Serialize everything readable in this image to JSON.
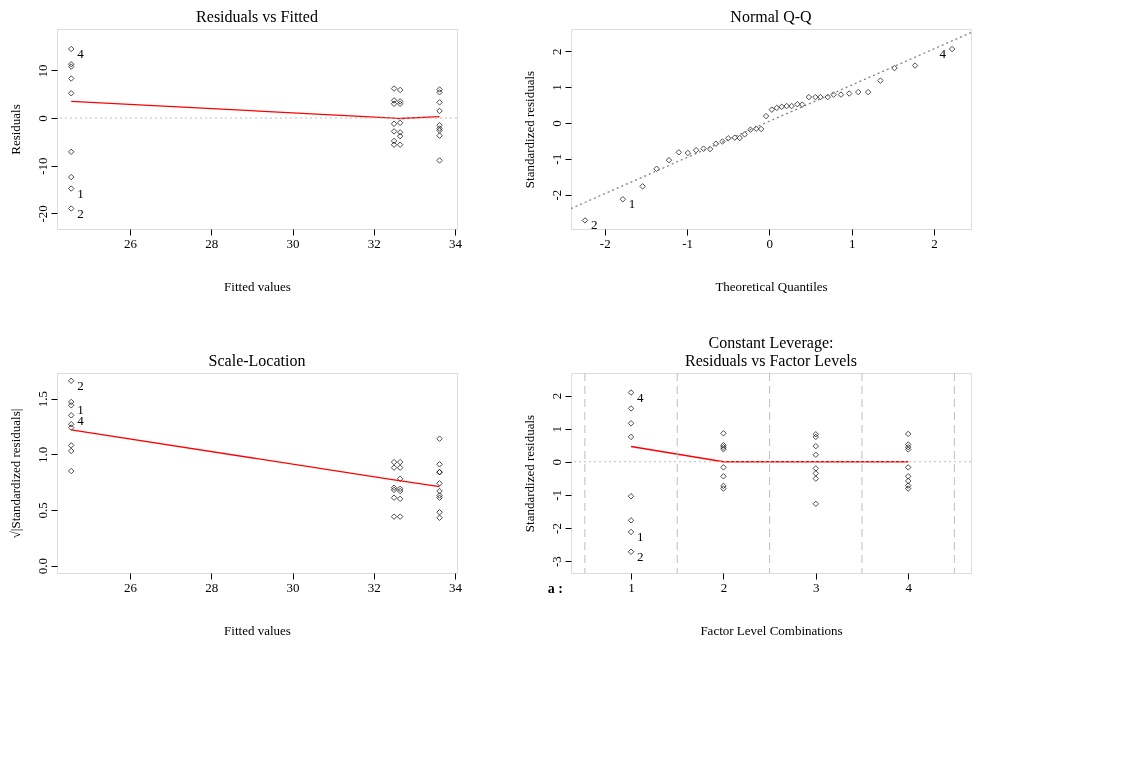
{
  "chart_data": [
    {
      "type": "scatter",
      "title": "Residuals vs Fitted",
      "xlabel": "Fitted values",
      "ylabel": "Residuals",
      "xlim": [
        24.2,
        34.05
      ],
      "xticks": [
        26,
        28,
        30,
        32,
        34
      ],
      "ylim": [
        -23.3,
        18.7
      ],
      "yticks": [
        -20,
        -10,
        0,
        10
      ],
      "series": [
        {
          "marker": "diamond",
          "color": "#000000",
          "x": [
            24.55,
            24.55,
            24.55,
            24.55,
            24.55,
            24.55,
            24.55,
            24.55,
            24.55,
            32.5,
            32.5,
            32.5,
            32.5,
            32.5,
            32.5,
            32.5,
            32.65,
            32.65,
            32.65,
            32.65,
            32.65,
            32.65,
            32.65,
            33.62,
            33.62,
            33.62,
            33.62,
            33.62,
            33.62,
            33.62,
            33.62,
            33.62
          ],
          "values": [
            14.5,
            11.3,
            10.8,
            8.3,
            5.2,
            -7.1,
            -12.4,
            -14.8,
            -19.0,
            6.2,
            3.7,
            3.0,
            -1.2,
            -2.8,
            -4.8,
            -5.6,
            5.9,
            3.5,
            3.0,
            -1.0,
            -3.0,
            -3.8,
            -5.6,
            6.0,
            5.4,
            3.3,
            1.5,
            -1.5,
            -2.2,
            -2.6,
            -3.7,
            -8.9
          ]
        },
        {
          "type": "line",
          "color": "#ff0000",
          "line_style": "solid",
          "x": [
            24.55,
            32.5,
            32.65,
            33.62
          ],
          "values": [
            3.5,
            0.0,
            -0.1,
            0.3
          ]
        }
      ],
      "ref_lines": [
        {
          "axis": "y",
          "value": 0,
          "color": "#bebebe",
          "line_style": "dotted"
        }
      ],
      "annotations": [
        {
          "text": "4",
          "x": 24.55,
          "y": 14.5
        },
        {
          "text": "1",
          "x": 24.55,
          "y": -14.8
        },
        {
          "text": "2",
          "x": 24.55,
          "y": -19.0
        }
      ]
    },
    {
      "type": "scatter",
      "title": "Normal Q-Q",
      "xlabel": "Theoretical Quantiles",
      "ylabel": "Standardized residuals",
      "xlim": [
        -2.41,
        2.45
      ],
      "xticks": [
        -2,
        -1,
        0,
        1,
        2
      ],
      "ylim": [
        -2.96,
        2.62
      ],
      "yticks": [
        -2,
        -1,
        0,
        1,
        2
      ],
      "series": [
        {
          "marker": "diamond",
          "color": "#000000",
          "x": [
            -2.24,
            -1.78,
            -1.54,
            -1.37,
            -1.22,
            -1.1,
            -0.99,
            -0.89,
            -0.8,
            -0.72,
            -0.65,
            -0.57,
            -0.5,
            -0.42,
            -0.36,
            -0.3,
            -0.23,
            -0.16,
            -0.1,
            -0.04,
            0.03,
            0.09,
            0.15,
            0.21,
            0.27,
            0.34,
            0.4,
            0.48,
            0.56,
            0.62,
            0.71,
            0.78,
            0.87,
            0.97,
            1.08,
            1.2,
            1.35,
            1.52,
            1.77,
            2.22
          ],
          "values": [
            -2.72,
            -2.13,
            -1.77,
            -1.28,
            -1.04,
            -0.82,
            -0.84,
            -0.76,
            -0.72,
            -0.73,
            -0.58,
            -0.52,
            -0.43,
            -0.41,
            -0.42,
            -0.32,
            -0.19,
            -0.16,
            -0.17,
            0.19,
            0.37,
            0.42,
            0.45,
            0.47,
            0.47,
            0.52,
            0.51,
            0.72,
            0.72,
            0.72,
            0.72,
            0.79,
            0.79,
            0.82,
            0.86,
            0.86,
            1.18,
            1.53,
            1.6,
            2.06
          ]
        },
        {
          "type": "line",
          "color": "#808080",
          "line_style": "dotted",
          "x": [
            -2.41,
            2.45
          ],
          "values": [
            -2.39,
            2.52
          ]
        }
      ],
      "annotations": [
        {
          "text": "2",
          "x": -2.24,
          "y": -2.72
        },
        {
          "text": "1",
          "x": -1.78,
          "y": -2.13
        },
        {
          "text": "4",
          "x": 2.22,
          "y": 2.06
        }
      ]
    },
    {
      "type": "scatter",
      "title": "Scale-Location",
      "xlabel": "Fitted values",
      "ylabel": "√|Standardized residuals|",
      "xlim": [
        24.2,
        34.05
      ],
      "xticks": [
        26,
        28,
        30,
        32,
        34
      ],
      "ylim": [
        -0.066,
        1.73
      ],
      "yticks": [
        {
          "value": 0,
          "label": "0.0"
        },
        {
          "value": 0.5,
          "label": "0.5"
        },
        {
          "value": 1,
          "label": "1.0"
        },
        {
          "value": 1.5,
          "label": "1.5"
        }
      ],
      "series": [
        {
          "marker": "diamond",
          "color": "#000000",
          "x": [
            24.55,
            24.55,
            24.55,
            24.55,
            24.55,
            24.55,
            24.55,
            24.55,
            24.55,
            32.5,
            32.5,
            32.5,
            32.5,
            32.5,
            32.5,
            32.65,
            32.65,
            32.65,
            32.65,
            32.65,
            32.65,
            32.65,
            33.62,
            33.62,
            33.62,
            33.62,
            33.62,
            33.62,
            33.62,
            33.62,
            33.62,
            33.62
          ],
          "values": [
            1.66,
            1.47,
            1.44,
            1.35,
            1.27,
            1.24,
            1.08,
            1.03,
            0.85,
            0.93,
            0.88,
            0.7,
            0.68,
            0.61,
            0.44,
            0.93,
            0.88,
            0.78,
            0.69,
            0.67,
            0.6,
            0.44,
            1.14,
            0.91,
            0.84,
            0.84,
            0.74,
            0.67,
            0.63,
            0.61,
            0.48,
            0.43
          ]
        },
        {
          "type": "line",
          "color": "#ff0000",
          "line_style": "solid",
          "x": [
            24.55,
            32.5,
            33.62
          ],
          "values": [
            1.22,
            0.77,
            0.71
          ]
        }
      ],
      "annotations": [
        {
          "text": "2",
          "x": 24.55,
          "y": 1.66
        },
        {
          "text": "1",
          "x": 24.55,
          "y": 1.44
        },
        {
          "text": "4",
          "x": 24.55,
          "y": 1.44
        }
      ]
    },
    {
      "type": "scatter",
      "title": "Constant Leverage:\nResiduals vs Factor Levels",
      "xlabel": "Factor Level Combinations",
      "ylabel": "Standardized residuals",
      "xlim": [
        0.35,
        4.68
      ],
      "xticks": [
        1,
        2,
        3,
        4
      ],
      "ylim": [
        -3.36,
        2.68
      ],
      "yticks": [
        -3,
        -2,
        -1,
        0,
        1,
        2
      ],
      "series": [
        {
          "marker": "diamond",
          "color": "#000000",
          "x": [
            1,
            1,
            1,
            1,
            1,
            1,
            1,
            1,
            2,
            2,
            2,
            2,
            2,
            2,
            2,
            2,
            3,
            3,
            3,
            3,
            3,
            3,
            3,
            3,
            4,
            4,
            4,
            4,
            4,
            4,
            4,
            4,
            4
          ],
          "values": [
            2.09,
            1.61,
            1.16,
            0.75,
            -1.04,
            -1.77,
            -2.12,
            -2.72,
            0.86,
            0.5,
            0.44,
            0.38,
            -0.17,
            -0.44,
            -0.73,
            -0.81,
            0.83,
            0.75,
            0.47,
            0.21,
            -0.2,
            -0.35,
            -0.51,
            -1.27,
            0.84,
            0.52,
            0.44,
            0.37,
            -0.17,
            -0.44,
            -0.58,
            -0.72,
            -0.81
          ]
        },
        {
          "type": "line",
          "color": "#ff0000",
          "line_style": "solid",
          "x": [
            1,
            2,
            3,
            4
          ],
          "values": [
            0.46,
            0,
            0,
            0
          ]
        }
      ],
      "ref_lines": [
        {
          "axis": "y",
          "value": 0,
          "color": "#bebebe",
          "line_style": "dotted"
        },
        {
          "axis": "x",
          "value": 0.5,
          "color": "#bebebe",
          "line_style": "dashed"
        },
        {
          "axis": "x",
          "value": 1.5,
          "color": "#bebebe",
          "line_style": "dashed"
        },
        {
          "axis": "x",
          "value": 2.5,
          "color": "#bebebe",
          "line_style": "dashed"
        },
        {
          "axis": "x",
          "value": 3.5,
          "color": "#bebebe",
          "line_style": "dashed"
        },
        {
          "axis": "x",
          "value": 4.5,
          "color": "#bebebe",
          "line_style": "dashed"
        }
      ],
      "annotations": [
        {
          "text": "4",
          "x": 1,
          "y": 2.09
        },
        {
          "text": "1",
          "x": 1,
          "y": -2.12
        },
        {
          "text": "2",
          "x": 1,
          "y": -2.72
        },
        "a :"
      ]
    }
  ]
}
